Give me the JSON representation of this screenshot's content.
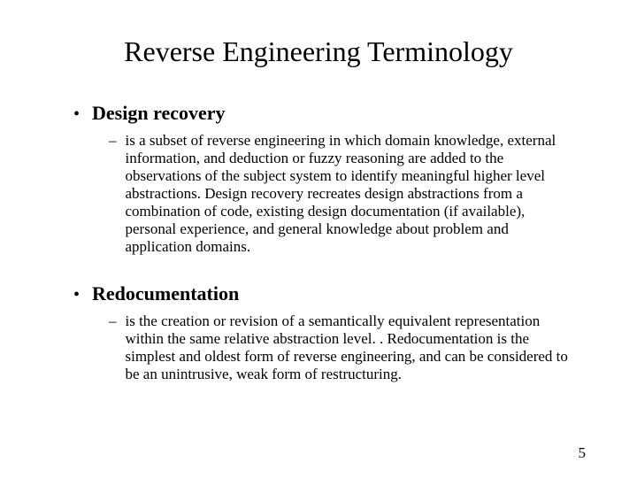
{
  "slide": {
    "title": "Reverse Engineering Terminology",
    "page_number": "5",
    "sections": [
      {
        "heading": "Design recovery",
        "body": "is a subset of reverse engineering in which domain knowledge, external information, and deduction or fuzzy reasoning are added to the observations of the subject system to identify meaningful higher level abstractions. Design recovery recreates design abstractions from a combination of code, existing design documentation (if available), personal experience, and general knowledge about problem and application domains."
      },
      {
        "heading": "Redocumentation",
        "body": "is the creation or revision of a semantically equivalent representation within the same relative abstraction level. . Redocumentation is the simplest and oldest form of reverse engineering, and can be considered to be an unintrusive, weak form of restructuring."
      }
    ]
  }
}
